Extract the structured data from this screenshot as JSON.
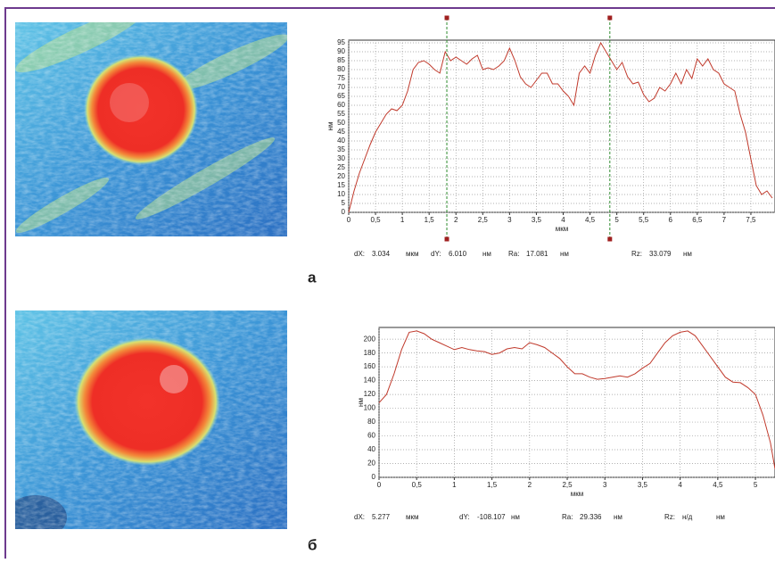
{
  "chart_data": [
    {
      "type": "line",
      "panel_label": "а",
      "xlabel": "мкм",
      "ylabel": "нм",
      "grid": true,
      "xlim": [
        0,
        7.95
      ],
      "ylim": [
        0,
        96.5
      ],
      "xticks": [
        0,
        {
          "value": 0.5,
          "label": "0,5"
        },
        1,
        {
          "value": 1.5,
          "label": "1,5"
        },
        2,
        {
          "value": 2.5,
          "label": "2,5"
        },
        3,
        {
          "value": 3.5,
          "label": "3,5"
        },
        4,
        {
          "value": 4.5,
          "label": "4,5"
        },
        5,
        {
          "value": 5.5,
          "label": "5,5"
        },
        6,
        {
          "value": 6.5,
          "label": "6,5"
        },
        7,
        {
          "value": 7.5,
          "label": "7,5"
        }
      ],
      "yticks": [
        0,
        5,
        10,
        15,
        20,
        25,
        30,
        35,
        40,
        45,
        50,
        55,
        60,
        65,
        70,
        75,
        80,
        85,
        90,
        95
      ],
      "cursors": [
        1.83,
        4.87
      ],
      "cursor_color": "#2e8b2e",
      "x": [
        0,
        0.1,
        0.2,
        0.3,
        0.4,
        0.5,
        0.6,
        0.7,
        0.8,
        0.9,
        1,
        1.1,
        1.2,
        1.3,
        1.4,
        1.5,
        1.6,
        1.7,
        1.8,
        1.9,
        2,
        2.1,
        2.2,
        2.3,
        2.4,
        2.5,
        2.6,
        2.7,
        2.8,
        2.9,
        3,
        3.1,
        3.2,
        3.3,
        3.4,
        3.5,
        3.6,
        3.7,
        3.8,
        3.9,
        4,
        4.1,
        4.2,
        4.3,
        4.4,
        4.5,
        4.6,
        4.7,
        4.8,
        4.9,
        5,
        5.1,
        5.2,
        5.3,
        5.4,
        5.5,
        5.6,
        5.7,
        5.8,
        5.9,
        6,
        6.1,
        6.2,
        6.3,
        6.4,
        6.5,
        6.6,
        6.7,
        6.8,
        6.9,
        7,
        7.1,
        7.2,
        7.3,
        7.4,
        7.5,
        7.6,
        7.7,
        7.8,
        7.9
      ],
      "series": [
        {
          "color": "#c0392b",
          "values": [
            0,
            12,
            22,
            30,
            38,
            45,
            50,
            55,
            58,
            57,
            60,
            68,
            80,
            84,
            85,
            83,
            80,
            78,
            90,
            85,
            87,
            85,
            83,
            86,
            88,
            80,
            81,
            80,
            82,
            85,
            92,
            85,
            76,
            72,
            70,
            74,
            78,
            78,
            72,
            72,
            68,
            65,
            60,
            78,
            82,
            78,
            88,
            95,
            90,
            85,
            80,
            84,
            76,
            72,
            73,
            66,
            62,
            64,
            70,
            68,
            72,
            78,
            72,
            80,
            75,
            86,
            82,
            86,
            80,
            78,
            72,
            70,
            68,
            55,
            45,
            30,
            15,
            10,
            12,
            8
          ]
        }
      ],
      "readouts": [
        {
          "label": "dX:",
          "value": "3.034",
          "unit": "мкм"
        },
        {
          "label": "dY:",
          "value": "6.010",
          "unit": "нм"
        },
        {
          "label": "Ra:",
          "value": "17.081",
          "unit": "нм"
        },
        {
          "label": "Rz:",
          "value": "33.079",
          "unit": "нм"
        }
      ]
    },
    {
      "type": "line",
      "panel_label": "б",
      "xlabel": "мкм",
      "ylabel": "нм",
      "grid": true,
      "xlim": [
        0,
        5.26
      ],
      "ylim": [
        0,
        217
      ],
      "xticks": [
        0,
        {
          "value": 0.5,
          "label": "0,5"
        },
        1,
        {
          "value": 1.5,
          "label": "1,5"
        },
        2,
        {
          "value": 2.5,
          "label": "2,5"
        },
        3,
        {
          "value": 3.5,
          "label": "3,5"
        },
        4,
        {
          "value": 4.5,
          "label": "4,5"
        },
        5
      ],
      "yticks": [
        0,
        20,
        40,
        60,
        80,
        100,
        120,
        140,
        160,
        180,
        200
      ],
      "x": [
        0,
        0.1,
        0.2,
        0.3,
        0.4,
        0.5,
        0.6,
        0.7,
        0.8,
        0.9,
        1,
        1.1,
        1.2,
        1.3,
        1.4,
        1.5,
        1.6,
        1.7,
        1.8,
        1.9,
        2,
        2.1,
        2.2,
        2.3,
        2.4,
        2.5,
        2.6,
        2.7,
        2.8,
        2.9,
        3,
        3.1,
        3.2,
        3.3,
        3.4,
        3.5,
        3.6,
        3.7,
        3.8,
        3.9,
        4,
        4.1,
        4.2,
        4.3,
        4.4,
        4.5,
        4.6,
        4.7,
        4.8,
        4.9,
        5,
        5.1,
        5.2,
        5.26
      ],
      "series": [
        {
          "color": "#c0392b",
          "values": [
            108,
            120,
            150,
            185,
            210,
            212,
            208,
            200,
            195,
            190,
            185,
            188,
            185,
            183,
            182,
            178,
            180,
            186,
            188,
            186,
            195,
            192,
            188,
            180,
            172,
            160,
            150,
            150,
            145,
            142,
            143,
            145,
            147,
            145,
            150,
            158,
            165,
            180,
            195,
            205,
            210,
            212,
            205,
            190,
            175,
            160,
            145,
            138,
            137,
            130,
            120,
            90,
            50,
            12
          ]
        }
      ],
      "readouts": [
        {
          "label": "dX:",
          "value": "5.277",
          "unit": "мкм"
        },
        {
          "label": "dY:",
          "value": "-108.107",
          "unit": "нм"
        },
        {
          "label": "Ra:",
          "value": "29.336",
          "unit": "нм"
        },
        {
          "label": "Rz:",
          "value": "н/д",
          "unit": "нм"
        }
      ]
    }
  ]
}
